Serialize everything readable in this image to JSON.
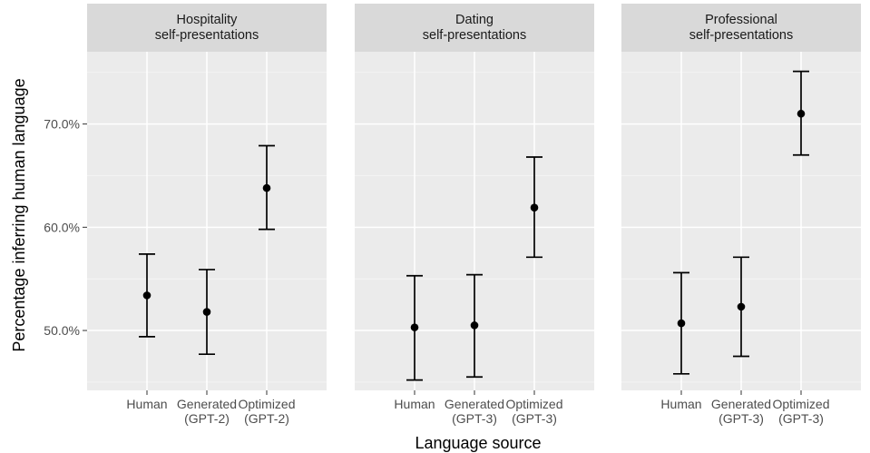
{
  "chart_data": {
    "type": "scatter",
    "error_bars": true,
    "facets": [
      {
        "title": [
          "Hospitality",
          "self-presentations"
        ],
        "categories": [
          [
            "Human"
          ],
          [
            "Generated",
            "(GPT-2)"
          ],
          [
            "Optimized",
            "(GPT-2)"
          ]
        ],
        "points": [
          {
            "y": 53.4,
            "lo": 49.4,
            "hi": 57.4
          },
          {
            "y": 51.8,
            "lo": 47.7,
            "hi": 55.9
          },
          {
            "y": 63.8,
            "lo": 59.8,
            "hi": 67.9
          }
        ]
      },
      {
        "title": [
          "Dating",
          "self-presentations"
        ],
        "categories": [
          [
            "Human"
          ],
          [
            "Generated",
            "(GPT-3)"
          ],
          [
            "Optimized",
            "(GPT-3)"
          ]
        ],
        "points": [
          {
            "y": 50.3,
            "lo": 45.2,
            "hi": 55.3
          },
          {
            "y": 50.5,
            "lo": 45.5,
            "hi": 55.4
          },
          {
            "y": 61.9,
            "lo": 57.1,
            "hi": 66.8
          }
        ]
      },
      {
        "title": [
          "Professional",
          "self-presentations"
        ],
        "categories": [
          [
            "Human"
          ],
          [
            "Generated",
            "(GPT-3)"
          ],
          [
            "Optimized",
            "(GPT-3)"
          ]
        ],
        "points": [
          {
            "y": 50.7,
            "lo": 45.8,
            "hi": 55.6
          },
          {
            "y": 52.3,
            "lo": 47.5,
            "hi": 57.1
          },
          {
            "y": 71.0,
            "lo": 67.0,
            "hi": 75.1
          }
        ]
      }
    ],
    "y_ticks": [
      50,
      60,
      70
    ],
    "y_tick_labels": [
      "50.0%",
      "60.0%",
      "70.0%"
    ],
    "ylim": [
      44.2,
      77.0
    ],
    "xlabel": "Language source",
    "ylabel": "Percentage inferring human language",
    "grid": true,
    "colors": {
      "panel_background": "#ebebeb",
      "strip_background": "#d9d9d9",
      "grid_major": "#ffffff",
      "points": "#000000"
    }
  }
}
